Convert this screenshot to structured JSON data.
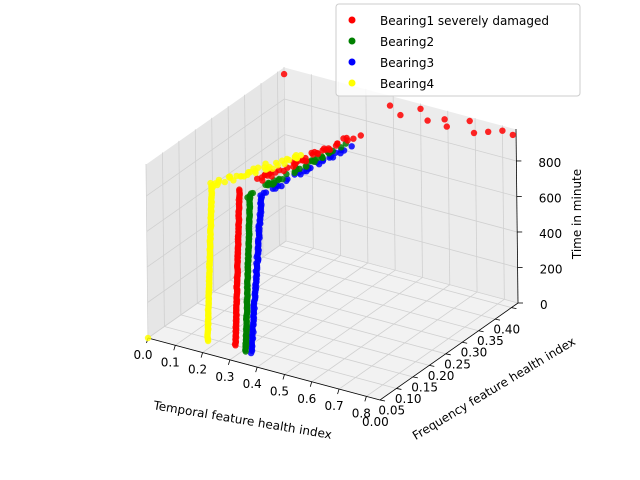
{
  "chart_data": {
    "type": "scatter3d",
    "xlabel": "Temporal feature health index",
    "ylabel": "Frequency feature health index",
    "zlabel": "Time in minute",
    "x_ticks": [
      "0.0",
      "0.1",
      "0.2",
      "0.3",
      "0.4",
      "0.5",
      "0.6",
      "0.7",
      "0.8"
    ],
    "y_ticks": [
      "0.00",
      "0.05",
      "0.10",
      "0.15",
      "0.20",
      "0.25",
      "0.30",
      "0.35",
      "0.40"
    ],
    "z_ticks": [
      "0",
      "200",
      "400",
      "600",
      "800"
    ],
    "xlim": [
      0,
      0.85
    ],
    "ylim": [
      0,
      0.42
    ],
    "zlim": [
      0,
      980
    ],
    "grid": true,
    "legend_position": "top-right",
    "series": [
      {
        "name": "Bearing1 severely damaged",
        "color": "#ff0000"
      },
      {
        "name": "Bearing2",
        "color": "#008000"
      },
      {
        "name": "Bearing3",
        "color": "#0000ff"
      },
      {
        "name": "Bearing4",
        "color": "#ffff00"
      }
    ],
    "point_groups": {
      "Bearing1 severely damaged": [
        {
          "x": [
            0.26,
            0.27
          ],
          "y": [
            0.05,
            0.06
          ],
          "z": [
            0,
            870
          ],
          "n": 120
        },
        {
          "x": [
            0.28,
            0.4
          ],
          "y": [
            0.1,
            0.3
          ],
          "z": [
            870,
            905
          ],
          "n": 40
        }
      ],
      "Bearing2": [
        {
          "x": [
            0.31,
            0.32
          ],
          "y": [
            0.04,
            0.05
          ],
          "z": [
            0,
            870
          ],
          "n": 120
        },
        {
          "x": [
            0.32,
            0.4
          ],
          "y": [
            0.06,
            0.26
          ],
          "z": [
            870,
            905
          ],
          "n": 40
        }
      ],
      "Bearing3": [
        {
          "x": [
            0.33,
            0.35
          ],
          "y": [
            0.04,
            0.06
          ],
          "z": [
            0,
            860
          ],
          "n": 100
        },
        {
          "x": [
            0.34,
            0.42
          ],
          "y": [
            0.07,
            0.26
          ],
          "z": [
            860,
            900
          ],
          "n": 30
        }
      ],
      "Bearing4": [
        {
          "x": [
            0.17,
            0.18
          ],
          "y": [
            0.04,
            0.05
          ],
          "z": [
            0,
            870
          ],
          "n": 120
        },
        {
          "x": [
            0.18,
            0.33
          ],
          "y": [
            0.05,
            0.2
          ],
          "z": [
            870,
            905
          ],
          "n": 40
        }
      ]
    },
    "extra_points": [
      {
        "series": "Bearing1 severely damaged",
        "x": 0.0,
        "y": 0.42,
        "z": 940
      },
      {
        "series": "Bearing1 severely damaged",
        "x": 0.4,
        "y": 0.41,
        "z": 940
      },
      {
        "series": "Bearing1 severely damaged",
        "x": 0.45,
        "y": 0.4,
        "z": 920
      },
      {
        "series": "Bearing1 severely damaged",
        "x": 0.5,
        "y": 0.42,
        "z": 950
      },
      {
        "series": "Bearing1 severely damaged",
        "x": 0.55,
        "y": 0.4,
        "z": 930
      },
      {
        "series": "Bearing1 severely damaged",
        "x": 0.6,
        "y": 0.41,
        "z": 945
      },
      {
        "series": "Bearing1 severely damaged",
        "x": 0.62,
        "y": 0.4,
        "z": 925
      },
      {
        "series": "Bearing1 severely damaged",
        "x": 0.68,
        "y": 0.42,
        "z": 955
      },
      {
        "series": "Bearing1 severely damaged",
        "x": 0.72,
        "y": 0.4,
        "z": 930
      },
      {
        "series": "Bearing1 severely damaged",
        "x": 0.76,
        "y": 0.41,
        "z": 940
      },
      {
        "series": "Bearing1 severely damaged",
        "x": 0.8,
        "y": 0.42,
        "z": 950
      },
      {
        "series": "Bearing1 severely damaged",
        "x": 0.85,
        "y": 0.41,
        "z": 960
      },
      {
        "series": "Bearing4",
        "x": 0.0,
        "y": 0.0,
        "z": 0
      }
    ]
  }
}
